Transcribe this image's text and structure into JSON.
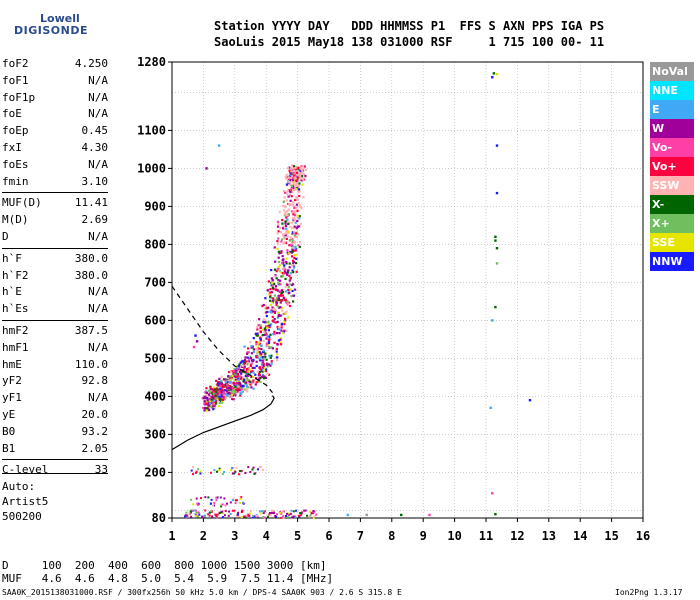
{
  "logo": {
    "line1": "Lowell",
    "line2": "DIGISONDE"
  },
  "header": {
    "row1": "Station YYYY DAY   DDD HHMMSS P1  FFS S AXN PPS IGA PS",
    "row2": "SaoLuis 2015 May18 138 031000 RSF     1 715 100 00- 11"
  },
  "params": [
    {
      "name": "foF2",
      "value": "4.250"
    },
    {
      "name": "foF1",
      "value": "N/A"
    },
    {
      "name": "foF1p",
      "value": "N/A"
    },
    {
      "name": "foE",
      "value": "N/A"
    },
    {
      "name": "foEp",
      "value": "0.45"
    },
    {
      "name": "fxI",
      "value": "4.30"
    },
    {
      "name": "foEs",
      "value": "N/A"
    },
    {
      "name": "fmin",
      "value": "3.10"
    },
    {
      "name": "MUF(D)",
      "value": "11.41"
    },
    {
      "name": "M(D)",
      "value": "2.69"
    },
    {
      "name": "D",
      "value": "N/A"
    },
    {
      "name": "h`F",
      "value": "380.0"
    },
    {
      "name": "h`F2",
      "value": "380.0"
    },
    {
      "name": "h`E",
      "value": "N/A"
    },
    {
      "name": "h`Es",
      "value": "N/A"
    },
    {
      "name": "hmF2",
      "value": "387.5"
    },
    {
      "name": "hmF1",
      "value": "N/A"
    },
    {
      "name": "hmE",
      "value": "110.0"
    },
    {
      "name": "yF2",
      "value": "92.8"
    },
    {
      "name": "yF1",
      "value": "N/A"
    },
    {
      "name": "yE",
      "value": "20.0"
    },
    {
      "name": "B0",
      "value": "93.2"
    },
    {
      "name": "B1",
      "value": "2.05"
    },
    {
      "name": "C-level",
      "value": "33"
    }
  ],
  "auto": [
    "Auto:",
    "Artist5",
    "500200"
  ],
  "legend": [
    {
      "label": "NoVal",
      "color": "#999999"
    },
    {
      "label": "NNE",
      "color": "#00e5ff"
    },
    {
      "label": "E",
      "color": "#3fa9f5"
    },
    {
      "label": "W",
      "color": "#a0009a"
    },
    {
      "label": "Vo-",
      "color": "#ff3fa8"
    },
    {
      "label": "Vo+",
      "color": "#ff0040"
    },
    {
      "label": "SSW",
      "color": "#ffb3b3"
    },
    {
      "label": "X-",
      "color": "#006400"
    },
    {
      "label": "X+",
      "color": "#6fbf5f"
    },
    {
      "label": "SSE",
      "color": "#e5e500"
    },
    {
      "label": "NNW",
      "color": "#1a1aff"
    }
  ],
  "bottom": {
    "row1": "D     100  200  400  600  800 1000 1500 3000 [km]",
    "row2": "MUF   4.6  4.6  4.8  5.0  5.4  5.9  7.5 11.4 [MHz]",
    "footer_left": "SAA0K_2015138031000.RSF / 300fx256h 50 kHz 5.0 km / DPS-4 SAA0K 903 / 2.6 S 315.8 E",
    "footer_right": "Ion2Png 1.3.17"
  },
  "chart_data": {
    "type": "scatter",
    "xlim": [
      1,
      16
    ],
    "ylim": [
      80,
      1280
    ],
    "x_ticks": [
      1,
      2,
      3,
      4,
      5,
      6,
      7,
      8,
      9,
      10,
      11,
      12,
      13,
      14,
      15,
      16
    ],
    "y_ticks": [
      80,
      200,
      300,
      400,
      500,
      600,
      700,
      800,
      900,
      1000,
      1100,
      1280
    ],
    "grid": true,
    "profile_solid": [
      [
        1.0,
        260
      ],
      [
        1.5,
        285
      ],
      [
        2.0,
        305
      ],
      [
        2.5,
        320
      ],
      [
        3.0,
        335
      ],
      [
        3.5,
        350
      ],
      [
        3.9,
        365
      ],
      [
        4.15,
        380
      ],
      [
        4.25,
        395
      ],
      [
        4.2,
        402
      ]
    ],
    "profile_dashed": [
      [
        1.0,
        690
      ],
      [
        1.5,
        630
      ],
      [
        2.0,
        570
      ],
      [
        2.5,
        520
      ],
      [
        3.0,
        480
      ],
      [
        3.5,
        455
      ],
      [
        4.0,
        430
      ],
      [
        4.2,
        410
      ]
    ],
    "trace_f2_lower": [
      [
        2.1,
        360
      ],
      [
        2.5,
        385
      ],
      [
        3.0,
        405
      ],
      [
        3.5,
        425
      ],
      [
        4.0,
        455
      ],
      [
        4.5,
        530
      ],
      [
        4.8,
        640
      ],
      [
        5.0,
        800
      ],
      [
        5.1,
        960
      ],
      [
        5.2,
        1000
      ]
    ],
    "trace_f2_upper": [
      [
        2.0,
        400
      ],
      [
        2.6,
        440
      ],
      [
        3.2,
        490
      ],
      [
        3.8,
        580
      ],
      [
        4.2,
        720
      ],
      [
        4.5,
        880
      ],
      [
        4.7,
        970
      ],
      [
        4.8,
        1000
      ]
    ],
    "low_band": {
      "x_range": [
        1.4,
        5.6
      ],
      "h_range": [
        80,
        100
      ]
    },
    "band_200": {
      "x_range": [
        1.6,
        3.9
      ],
      "h_range": [
        195,
        215
      ]
    },
    "band_120": {
      "x_range": [
        1.6,
        3.3
      ],
      "h_range": [
        110,
        135
      ]
    },
    "isolated_points": [
      [
        11.2,
        1240,
        "#1a1aff"
      ],
      [
        11.25,
        1250,
        "#006400"
      ],
      [
        11.35,
        1248,
        "#e5e500"
      ],
      [
        11.35,
        1060,
        "#1a1aff"
      ],
      [
        11.35,
        935,
        "#1a1aff"
      ],
      [
        11.3,
        820,
        "#006400"
      ],
      [
        11.3,
        810,
        "#006400"
      ],
      [
        11.35,
        790,
        "#006400"
      ],
      [
        11.35,
        750,
        "#6fbf5f"
      ],
      [
        11.3,
        635,
        "#006400"
      ],
      [
        11.2,
        600,
        "#3fa9f5"
      ],
      [
        11.15,
        370,
        "#3fa9f5"
      ],
      [
        12.4,
        390,
        "#1a1aff"
      ],
      [
        11.2,
        145,
        "#ff3fa8"
      ],
      [
        11.3,
        90,
        "#006400"
      ],
      [
        2.5,
        1060,
        "#3fa9f5"
      ],
      [
        2.1,
        1000,
        "#a0009a"
      ],
      [
        1.75,
        560,
        "#1a1aff"
      ],
      [
        1.8,
        545,
        "#a0009a"
      ],
      [
        1.7,
        530,
        "#ff3fa8"
      ],
      [
        6.6,
        88,
        "#3fa9f5"
      ],
      [
        8.3,
        88,
        "#006400"
      ],
      [
        7.2,
        88,
        "#999999"
      ],
      [
        9.2,
        88,
        "#ff3fa8"
      ]
    ]
  }
}
